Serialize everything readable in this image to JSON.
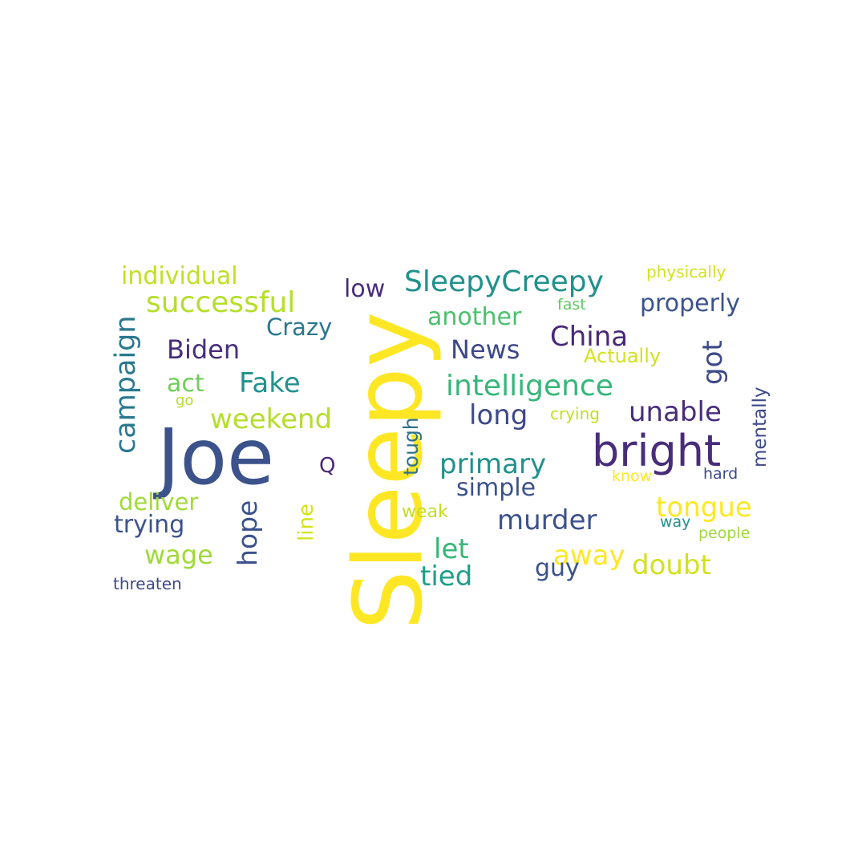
{
  "words": [
    {
      "text": "Sleepy",
      "color": "#fde725"
    },
    {
      "text": "Joe",
      "color": "#3b528b"
    },
    {
      "text": "bright",
      "color": "#472d7b"
    },
    {
      "text": "SleepyCreepy",
      "color": "#21918c"
    },
    {
      "text": "successful",
      "color": "#b5de2b"
    },
    {
      "text": "intelligence",
      "color": "#35b779"
    },
    {
      "text": "campaign",
      "color": "#2a788e"
    },
    {
      "text": "individual",
      "color": "#c2df23"
    },
    {
      "text": "weekend",
      "color": "#b5de2b"
    },
    {
      "text": "primary",
      "color": "#21918c"
    },
    {
      "text": "unable",
      "color": "#472d7b"
    },
    {
      "text": "tongue",
      "color": "#fde725"
    },
    {
      "text": "properly",
      "color": "#3b528b"
    },
    {
      "text": "China",
      "color": "#482878"
    },
    {
      "text": "Biden",
      "color": "#472d7b"
    },
    {
      "text": "Fake",
      "color": "#21918c"
    },
    {
      "text": "News",
      "color": "#3e4989"
    },
    {
      "text": "murder",
      "color": "#3b528b"
    },
    {
      "text": "doubt",
      "color": "#d2e21b"
    },
    {
      "text": "another",
      "color": "#4ac16d"
    },
    {
      "text": "long",
      "color": "#3e4989"
    },
    {
      "text": "Crazy",
      "color": "#2a788e"
    },
    {
      "text": "deliver",
      "color": "#a0da39"
    },
    {
      "text": "trying",
      "color": "#3b528b"
    },
    {
      "text": "wage",
      "color": "#a0da39"
    },
    {
      "text": "hope",
      "color": "#3b528b"
    },
    {
      "text": "tied",
      "color": "#1f9e89"
    },
    {
      "text": "let",
      "color": "#35b779"
    },
    {
      "text": "away",
      "color": "#fde725"
    },
    {
      "text": "got",
      "color": "#3e4989"
    },
    {
      "text": "simple",
      "color": "#3b528b"
    },
    {
      "text": "tough",
      "color": "#2c728e"
    },
    {
      "text": "low",
      "color": "#472d7b"
    },
    {
      "text": "act",
      "color": "#6ece58"
    },
    {
      "text": "guy",
      "color": "#3b528b"
    },
    {
      "text": "line",
      "color": "#d2e21b"
    },
    {
      "text": "Actually",
      "color": "#d2e21b"
    },
    {
      "text": "mentally",
      "color": "#3e4989"
    },
    {
      "text": "physically",
      "color": "#d2e21b"
    },
    {
      "text": "Q",
      "color": "#482878"
    },
    {
      "text": "threaten",
      "color": "#3e4989"
    },
    {
      "text": "crying",
      "color": "#c2df23"
    },
    {
      "text": "fast",
      "color": "#5ec962"
    },
    {
      "text": "weak",
      "color": "#c2df23"
    },
    {
      "text": "know",
      "color": "#fde725"
    },
    {
      "text": "hard",
      "color": "#3e4989"
    },
    {
      "text": "way",
      "color": "#21918c"
    },
    {
      "text": "people",
      "color": "#a0da39"
    },
    {
      "text": "go",
      "color": "#b5de2b"
    }
  ]
}
